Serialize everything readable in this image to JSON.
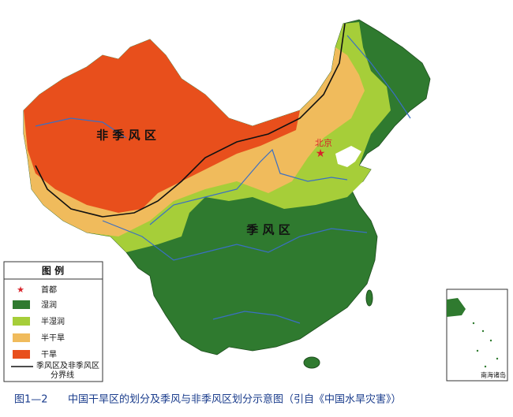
{
  "map": {
    "regions": {
      "non_monsoon": "非 季 风 区",
      "monsoon": "季 风 区"
    },
    "capital": "北京",
    "inset": "南海诸岛"
  },
  "legend": {
    "title": "图 例",
    "items": [
      "首都",
      "湿润",
      "半湿润",
      "半干旱",
      "干旱"
    ],
    "boundary": [
      "季风区及非季风区",
      "分界线"
    ]
  },
  "caption": {
    "number": "图1—2",
    "text": "中国干旱区的划分及季风与非季风区划分示意图（引自《中国水旱灾害》）"
  }
}
